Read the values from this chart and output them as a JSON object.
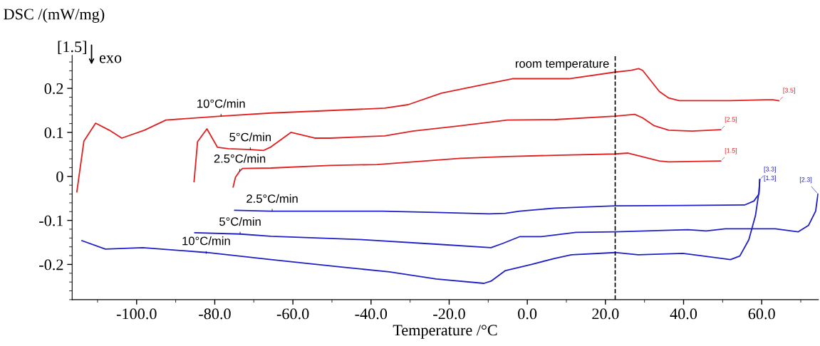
{
  "chart_data": {
    "type": "line",
    "xlabel": "Temperature /°C",
    "ylabel": "DSC /(mW/mg)",
    "xlim": [
      -116.5,
      74.5
    ],
    "ylim": [
      -0.28,
      0.275
    ],
    "xticks": [
      {
        "value": -100,
        "label": "-100.0"
      },
      {
        "value": -80,
        "label": "-80.0"
      },
      {
        "value": -60,
        "label": "-60.0"
      },
      {
        "value": -40,
        "label": "-40.0"
      },
      {
        "value": -20,
        "label": "-20.0"
      },
      {
        "value": 0,
        "label": "0.0"
      },
      {
        "value": 20,
        "label": "20.0"
      },
      {
        "value": 40,
        "label": "40.0"
      },
      {
        "value": 60,
        "label": "60.0"
      }
    ],
    "yticks": [
      -0.2,
      -0.1,
      0,
      0.1,
      0.2
    ],
    "grid": false,
    "marker": "none",
    "line_style": "solid",
    "ref_lines": [
      {
        "axis": "x",
        "value": 22.5,
        "label": "room temperature",
        "color": "#000000",
        "line_style": "dashed"
      }
    ],
    "annotations": [
      "[1.5]",
      "exo",
      {
        "text": "10°C/min",
        "x": -78.4,
        "y": 0.137
      },
      {
        "text": "5°C/min",
        "x": -70.9,
        "y": 0.061
      },
      {
        "text": "2.5°C/min",
        "x": -73.6,
        "y": 0.012
      },
      {
        "text": "2.5°C/min",
        "x": -65.3,
        "y": -0.079
      },
      {
        "text": "5°C/min",
        "x": -73.5,
        "y": -0.131
      },
      {
        "text": "10°C/min",
        "x": -82.2,
        "y": -0.175
      }
    ],
    "series": [
      {
        "name": "[3.5]",
        "color": "#e02020",
        "x": [
          -115.3,
          -113.5,
          -110.5,
          -107,
          -103.8,
          -98,
          -92.5,
          -78.4,
          -65.6,
          -36.5,
          -30.5,
          -22,
          -11.1,
          -3.8,
          3.5,
          10.7,
          22.5,
          26.5,
          28.5,
          29.5,
          33.8,
          36.2,
          38.9,
          52,
          61.1,
          62.9,
          64.4
        ],
        "values": [
          -0.035,
          0.08,
          0.121,
          0.105,
          0.087,
          0.105,
          0.128,
          0.137,
          0.144,
          0.155,
          0.163,
          0.189,
          0.209,
          0.222,
          0.222,
          0.222,
          0.237,
          0.241,
          0.245,
          0.241,
          0.193,
          0.178,
          0.172,
          0.172,
          0.174,
          0.174,
          0.172
        ]
      },
      {
        "name": "[2.5]",
        "color": "#e02020",
        "x": [
          -85.3,
          -84.4,
          -82,
          -79.3,
          -76.5,
          -70.7,
          -67.5,
          -65.6,
          -60.5,
          -54.4,
          -50.5,
          -36.5,
          -29.3,
          -17.1,
          -5.1,
          7.1,
          22.5,
          27.5,
          29.5,
          32.5,
          36.2,
          42.2,
          49.5
        ],
        "values": [
          -0.012,
          0.079,
          0.108,
          0.066,
          0.063,
          0.061,
          0.059,
          0.067,
          0.1,
          0.087,
          0.087,
          0.092,
          0.103,
          0.115,
          0.128,
          0.129,
          0.137,
          0.141,
          0.133,
          0.115,
          0.105,
          0.103,
          0.106
        ]
      },
      {
        "name": "[1.5]",
        "color": "#e02020",
        "x": [
          -75.3,
          -74.7,
          -73.6,
          -72.9,
          -65.6,
          -50.5,
          -38.4,
          -29.3,
          -17.1,
          -5.1,
          7.1,
          22.5,
          25.8,
          28.9,
          33.8,
          36.2,
          49.5
        ],
        "values": [
          -0.024,
          -0.002,
          0.012,
          0.018,
          0.019,
          0.025,
          0.027,
          0.033,
          0.041,
          0.045,
          0.048,
          0.051,
          0.053,
          0.046,
          0.035,
          0.033,
          0.035
        ]
      },
      {
        "name": "[3.3]",
        "color": "#1f1fc8",
        "x": [
          -74.9,
          -65.6,
          -37.1,
          -23.3,
          -9.8,
          -5.6,
          -2,
          7.1,
          22.5,
          39.8,
          55.6,
          58,
          59.3,
          59.5
        ],
        "values": [
          -0.077,
          -0.079,
          -0.079,
          -0.082,
          -0.085,
          -0.084,
          -0.079,
          -0.072,
          -0.067,
          -0.066,
          -0.065,
          -0.056,
          -0.04,
          -0.007
        ]
      },
      {
        "name": "[2.3]",
        "color": "#1f1fc8",
        "x": [
          -85.1,
          -73.5,
          -65.6,
          -41.5,
          -23.3,
          -9.3,
          -6.2,
          -2,
          3.5,
          12.5,
          22.5,
          41.1,
          45.8,
          50.7,
          63.5,
          69.3,
          72,
          73.8,
          74.4
        ],
        "values": [
          -0.128,
          -0.131,
          -0.136,
          -0.144,
          -0.154,
          -0.162,
          -0.152,
          -0.137,
          -0.137,
          -0.127,
          -0.126,
          -0.121,
          -0.124,
          -0.119,
          -0.119,
          -0.126,
          -0.111,
          -0.079,
          -0.04
        ]
      },
      {
        "name": "[1.3]",
        "color": "#1f1fc8",
        "x": [
          -114,
          -108,
          -98.4,
          -82,
          -73.8,
          -65.6,
          -47.5,
          -35.3,
          -23.3,
          -11.1,
          -9.3,
          -5.6,
          1.1,
          7.1,
          11.3,
          22.5,
          28.4,
          39.8,
          52,
          54.4,
          56.7,
          58.4,
          59.3,
          59.5
        ],
        "values": [
          -0.146,
          -0.165,
          -0.162,
          -0.173,
          -0.181,
          -0.189,
          -0.206,
          -0.217,
          -0.233,
          -0.243,
          -0.238,
          -0.214,
          -0.2,
          -0.186,
          -0.178,
          -0.173,
          -0.178,
          -0.175,
          -0.189,
          -0.181,
          -0.144,
          -0.089,
          -0.035,
          -0.007
        ]
      }
    ]
  }
}
